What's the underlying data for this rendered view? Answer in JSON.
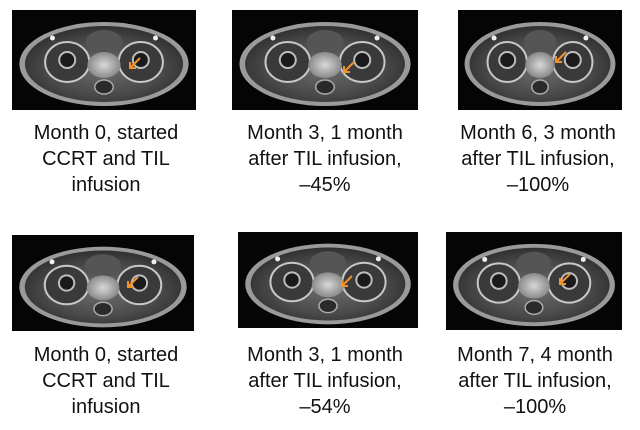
{
  "arrow_color": "#f2922a",
  "panels": [
    {
      "lines": [
        "Month 0, started",
        "CCRT and TIL",
        "infusion"
      ]
    },
    {
      "lines": [
        "Month 3, 1 month",
        "after TIL infusion,",
        "–45%"
      ]
    },
    {
      "lines": [
        "Month 6, 3 month",
        "after TIL infusion,",
        "–100%"
      ]
    },
    {
      "lines": [
        "Month 0, started",
        "CCRT and TIL",
        "infusion"
      ]
    },
    {
      "lines": [
        "Month 3, 1 month",
        "after TIL infusion,",
        "–54%"
      ]
    },
    {
      "lines": [
        "Month 7, 4 month",
        "after TIL infusion,",
        "–100%"
      ]
    }
  ]
}
